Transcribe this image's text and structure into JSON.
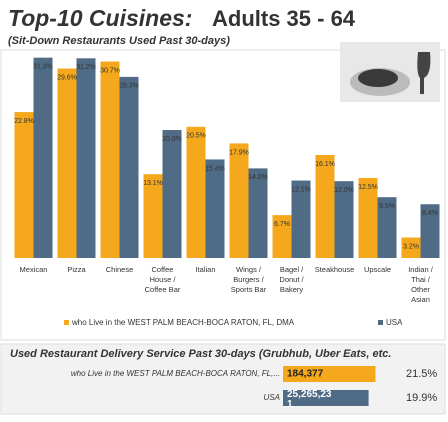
{
  "chart_data": [
    {
      "type": "bar",
      "title": "Top-10 Cuisines:",
      "subtitle_main": "Adults 35 - 64",
      "subtitle": "(Sit-Down Restaurants Used Past 30-days)",
      "categories": [
        "Mexican",
        "Pizza",
        "Chinese",
        "Coffee\nHouse /\nCoffee Bar",
        "Italian",
        "Wings /\nBurgers /\nSports Bar",
        "Bagel /\nDonut /\nBakery",
        "Steakhouse",
        "Upscale",
        "Indian /\nThai /\nOther\nAsian"
      ],
      "series": [
        {
          "name": "who Live in the WEST PALM BEACH-BOCA RATON, FL, DMA",
          "color": "#f5a81c",
          "values": [
            22.8,
            29.6,
            30.7,
            13.1,
            20.5,
            17.9,
            6.7,
            16.1,
            12.5,
            3.2
          ],
          "value_labels": [
            "22.8%",
            "29.6%",
            "30.7%",
            "13.1%",
            "20.5%",
            "17.9%",
            "6.7%",
            "16.1%",
            "12.5%",
            "3.2%"
          ]
        },
        {
          "name": "USA",
          "color": "#4f6b86",
          "values": [
            31.3,
            31.2,
            28.3,
            20.0,
            15.4,
            14.0,
            12.1,
            12.0,
            9.5,
            8.4
          ],
          "value_labels": [
            "31.3%",
            "31.2%",
            "28.3%",
            "20.0%",
            "15.4%",
            "14.0%",
            "12.1%",
            "12.0%",
            "9.5%",
            "8.4%"
          ]
        }
      ]
    },
    {
      "type": "hbar",
      "title": "Used Restaurant Delivery Service Past 30-days (Grubhub, Uber Eats, etc.",
      "categories": [
        "who Live in the WEST PALM BEACH-BOCA RATON, FL,...",
        "USA"
      ],
      "colors": [
        "#f5a81c",
        "#4f6b86"
      ],
      "values": [
        21.5,
        19.9
      ],
      "value_labels": [
        "21.5%",
        "19.9%"
      ],
      "counts": [
        184377,
        25265231
      ],
      "count_labels": [
        "184,377",
        "25,265,23\n1"
      ]
    }
  ]
}
